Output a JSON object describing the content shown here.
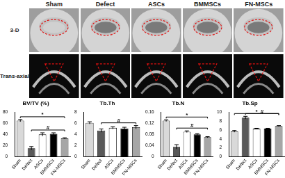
{
  "figure": {
    "columns": [
      "Sham",
      "Defect",
      "ASCs",
      "BMMSCs",
      "FN-MSCs"
    ],
    "rows": [
      "3-D",
      "Trans-axial"
    ]
  },
  "chart_data": [
    {
      "type": "bar",
      "title": "BV/TV (%)",
      "categories": [
        "Sham",
        "Defect",
        "ASCs",
        "BMMSCs",
        "FN-MSCs"
      ],
      "values": [
        65,
        15,
        40,
        41,
        33
      ],
      "errors": [
        2,
        3,
        3,
        2,
        1
      ],
      "colors": [
        "#d9d9d9",
        "#595959",
        "#ffffff",
        "#000000",
        "#a6a6a6"
      ],
      "ylim": [
        0,
        80
      ],
      "yticks": [
        0,
        20,
        40,
        60,
        80
      ],
      "grid": false,
      "annotations": [
        {
          "text": "*",
          "from": "Sham",
          "to": "FN-MSCs"
        },
        {
          "text": "#",
          "from": "Defect",
          "to": "FN-MSCs"
        }
      ]
    },
    {
      "type": "bar",
      "title": "Tb.Th",
      "categories": [
        "Sham",
        "Defect",
        "ASCs",
        "BMMSCs",
        "FN-MSCs"
      ],
      "values": [
        6.1,
        4.7,
        5.2,
        5.1,
        5.3
      ],
      "errors": [
        0.2,
        0.3,
        0.2,
        0.2,
        0.3
      ],
      "colors": [
        "#d9d9d9",
        "#595959",
        "#ffffff",
        "#000000",
        "#a6a6a6"
      ],
      "ylim": [
        0,
        8
      ],
      "yticks": [
        0,
        2,
        4,
        6,
        8
      ],
      "grid": false,
      "annotations": [
        {
          "text": "#",
          "from": "Defect",
          "to": "FN-MSCs"
        }
      ]
    },
    {
      "type": "bar",
      "title": "Tb.N",
      "categories": [
        "Sham",
        "Defect",
        "ASCs",
        "BMMSCs",
        "FN-MSCs"
      ],
      "values": [
        0.13,
        0.035,
        0.09,
        0.08,
        0.07
      ],
      "errors": [
        0.003,
        0.008,
        0.003,
        0.003,
        0.002
      ],
      "colors": [
        "#d9d9d9",
        "#595959",
        "#ffffff",
        "#000000",
        "#a6a6a6"
      ],
      "ylim": [
        0,
        0.16
      ],
      "yticks": [
        0,
        0.04,
        0.08,
        0.12,
        0.16
      ],
      "grid": false,
      "annotations": [
        {
          "text": "*",
          "from": "Sham",
          "to": "FN-MSCs"
        },
        {
          "text": "#",
          "from": "Defect",
          "to": "FN-MSCs"
        }
      ]
    },
    {
      "type": "bar",
      "title": "Tb.Sp",
      "categories": [
        "Sham",
        "Defect",
        "ASCs",
        "BMMSCs",
        "FN-MSCs"
      ],
      "values": [
        5.7,
        8.8,
        6.3,
        6.3,
        6.9
      ],
      "errors": [
        0.2,
        0.3,
        0.1,
        0.1,
        0.1
      ],
      "colors": [
        "#d9d9d9",
        "#595959",
        "#ffffff",
        "#000000",
        "#a6a6a6"
      ],
      "ylim": [
        0,
        10
      ],
      "yticks": [
        0,
        2,
        4,
        6,
        8,
        10
      ],
      "grid": false,
      "annotations": [
        {
          "text": "*",
          "from": "Sham",
          "to": "FN-MSCs"
        },
        {
          "text": "#",
          "from": "Defect",
          "to": "FN-MSCs"
        }
      ]
    }
  ]
}
